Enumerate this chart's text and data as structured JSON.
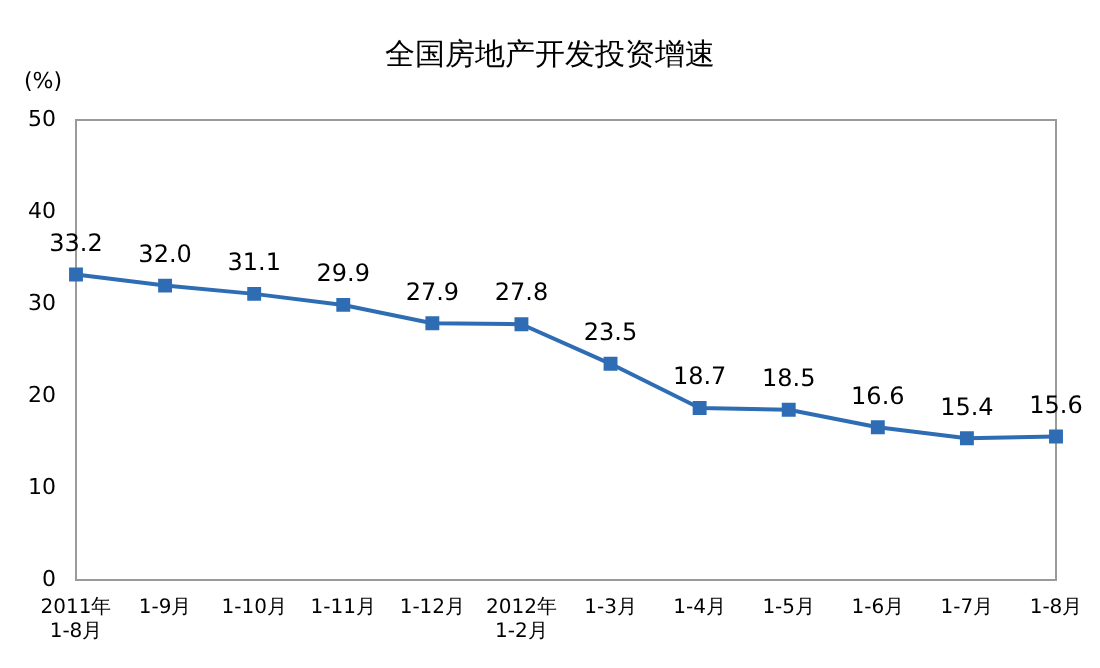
{
  "chart_data": {
    "type": "line",
    "title": "全国房地产开发投资增速",
    "ylabel": "(%)",
    "categories": [
      "2011年\n1-8月",
      "1-9月",
      "1-10月",
      "1-11月",
      "1-12月",
      "2012年\n1-2月",
      "1-3月",
      "1-4月",
      "1-5月",
      "1-6月",
      "1-7月",
      "1-8月"
    ],
    "series": [
      {
        "color": "#2e6db4",
        "values": [
          33.2,
          32.0,
          31.1,
          29.9,
          27.9,
          27.8,
          23.5,
          18.7,
          18.5,
          16.6,
          15.4,
          15.6
        ]
      }
    ],
    "value_labels": [
      "33.2",
      "32.0",
      "31.1",
      "29.9",
      "27.9",
      "27.8",
      "23.5",
      "18.7",
      "18.5",
      "16.6",
      "15.4",
      "15.6"
    ],
    "ylim": [
      0,
      50
    ],
    "yticks": [
      0,
      10,
      20,
      30,
      40,
      50
    ],
    "grid": false,
    "legend": false,
    "marker": "square",
    "line_style": "solid"
  }
}
